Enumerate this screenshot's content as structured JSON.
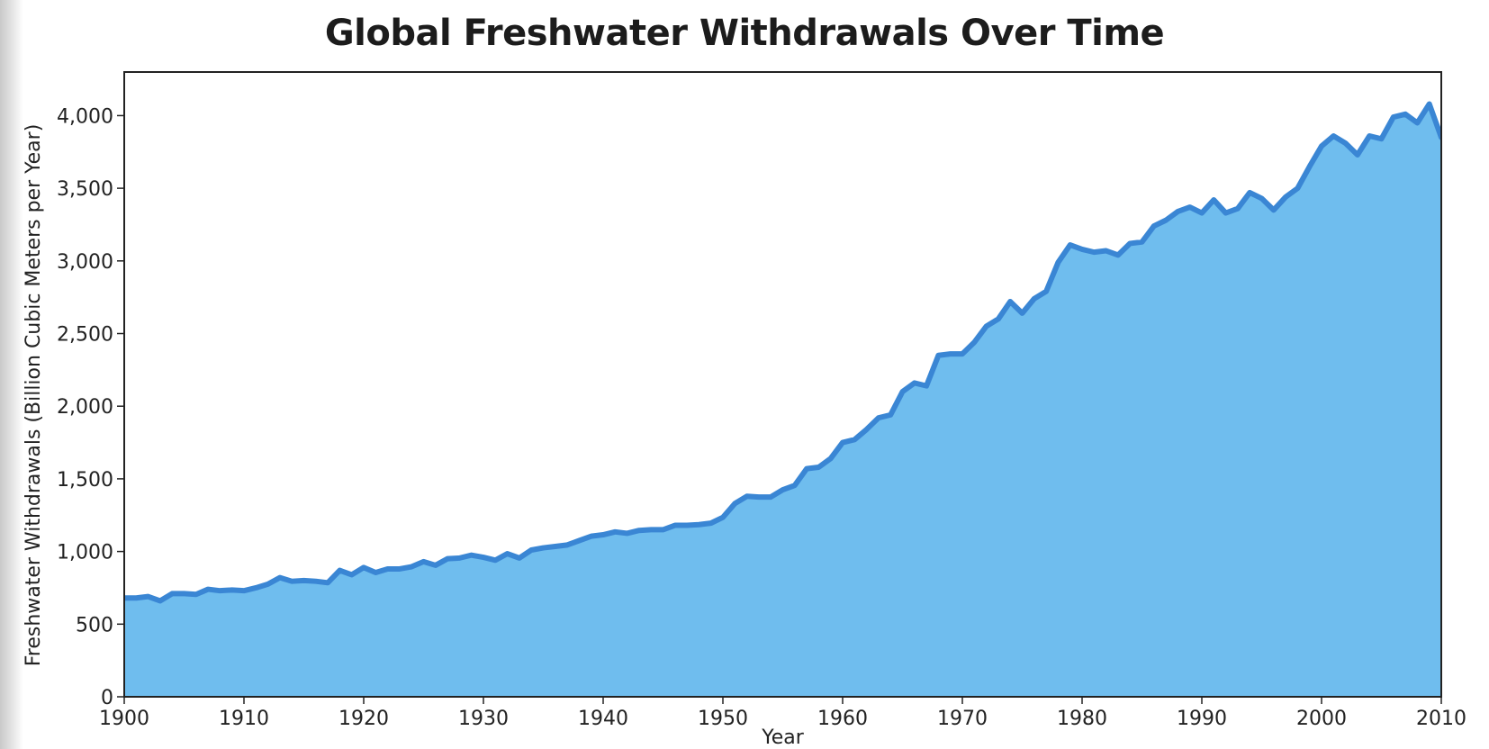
{
  "chart_data": {
    "type": "area",
    "title": "Global Freshwater Withdrawals Over Time",
    "xlabel": "Year",
    "ylabel": "Freshwater Withdrawals (Billion Cubic Meters per Year)",
    "xlim": [
      1900,
      2010
    ],
    "ylim": [
      0,
      4300
    ],
    "grid": false,
    "x_ticks": [
      1900,
      1910,
      1920,
      1930,
      1940,
      1950,
      1960,
      1970,
      1980,
      1990,
      2000,
      2010
    ],
    "x_tick_labels": [
      "1900",
      "1910",
      "1920",
      "1930",
      "1940",
      "1950",
      "1960",
      "1970",
      "1980",
      "1990",
      "2000",
      "2010"
    ],
    "y_ticks": [
      0,
      500,
      1000,
      1500,
      2000,
      2500,
      3000,
      3500,
      4000
    ],
    "y_tick_labels": [
      "0",
      "500",
      "1,000",
      "1,500",
      "2,000",
      "2,500",
      "3,000",
      "3,500",
      "4,000"
    ],
    "colors": {
      "fill": "#6fbdee",
      "line": "#3a86d4",
      "axis": "#222222"
    },
    "series": [
      {
        "name": "Freshwater Withdrawals",
        "x": [
          1900,
          1901,
          1902,
          1903,
          1904,
          1905,
          1906,
          1907,
          1908,
          1909,
          1910,
          1911,
          1912,
          1913,
          1914,
          1915,
          1916,
          1917,
          1918,
          1919,
          1920,
          1921,
          1922,
          1923,
          1924,
          1925,
          1926,
          1927,
          1928,
          1929,
          1930,
          1931,
          1932,
          1933,
          1934,
          1935,
          1936,
          1937,
          1938,
          1939,
          1940,
          1941,
          1942,
          1943,
          1944,
          1945,
          1946,
          1947,
          1948,
          1949,
          1950,
          1951,
          1952,
          1953,
          1954,
          1955,
          1956,
          1957,
          1958,
          1959,
          1960,
          1961,
          1962,
          1963,
          1964,
          1965,
          1966,
          1967,
          1968,
          1969,
          1970,
          1971,
          1972,
          1973,
          1974,
          1975,
          1976,
          1977,
          1978,
          1979,
          1980,
          1981,
          1982,
          1983,
          1984,
          1985,
          1986,
          1987,
          1988,
          1989,
          1990,
          1991,
          1992,
          1993,
          1994,
          1995,
          1996,
          1997,
          1998,
          1999,
          2000,
          2001,
          2002,
          2003,
          2004,
          2005,
          2006,
          2007,
          2008,
          2009,
          2010
        ],
        "values": [
          680,
          680,
          690,
          660,
          710,
          710,
          705,
          740,
          730,
          735,
          730,
          750,
          775,
          820,
          795,
          800,
          795,
          785,
          870,
          840,
          890,
          855,
          880,
          880,
          895,
          930,
          905,
          950,
          955,
          975,
          960,
          940,
          985,
          955,
          1010,
          1025,
          1035,
          1045,
          1075,
          1105,
          1115,
          1135,
          1125,
          1145,
          1150,
          1150,
          1180,
          1180,
          1185,
          1195,
          1235,
          1330,
          1380,
          1375,
          1375,
          1425,
          1455,
          1570,
          1580,
          1640,
          1750,
          1770,
          1840,
          1920,
          1940,
          2100,
          2160,
          2140,
          2350,
          2360,
          2360,
          2440,
          2550,
          2600,
          2720,
          2640,
          2740,
          2790,
          2990,
          3110,
          3080,
          3060,
          3070,
          3040,
          3120,
          3130,
          3240,
          3280,
          3340,
          3370,
          3330,
          3420,
          3330,
          3360,
          3470,
          3430,
          3350,
          3440,
          3500,
          3650,
          3790,
          3860,
          3810,
          3730,
          3860,
          3840,
          3990,
          4010,
          3950,
          4080,
          3850
        ]
      }
    ]
  }
}
